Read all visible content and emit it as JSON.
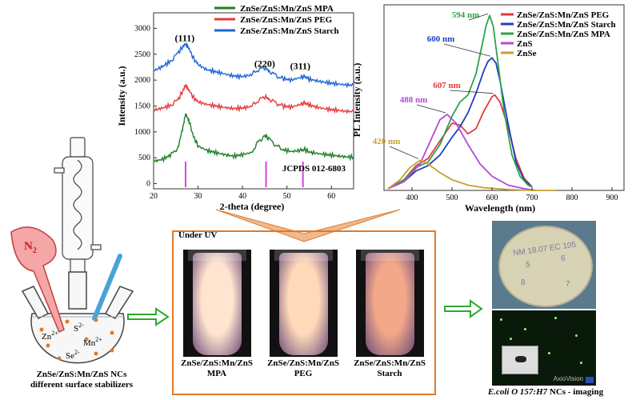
{
  "chart_data": [
    {
      "type": "line",
      "name": "XRD patterns",
      "xlabel": "2-theta (degree)",
      "ylabel": "Intensity (a.u.)",
      "xlim": [
        20,
        65
      ],
      "ylim": [
        -100,
        3300
      ],
      "xticks": [
        20,
        30,
        40,
        50,
        60
      ],
      "yticks": [
        0,
        500,
        1000,
        1500,
        2000,
        2500,
        3000
      ],
      "peak_labels": [
        {
          "text": "(111)",
          "x": 27.0,
          "y": 2750
        },
        {
          "text": "(220)",
          "x": 45.0,
          "y": 2260
        },
        {
          "text": "(311)",
          "x": 53.0,
          "y": 2210
        }
      ],
      "reference": {
        "label": "JCPDS 012-6803",
        "positions": [
          27.2,
          45.3,
          53.6
        ]
      },
      "series": [
        {
          "name": "ZnSe/ZnS:Mn/ZnS MPA",
          "color": "#1f7f27",
          "x": [
            20,
            22,
            24,
            25.5,
            26.5,
            27.2,
            28,
            29,
            30,
            32,
            34,
            36,
            38,
            40,
            42,
            43.5,
            45,
            46,
            47.5,
            49,
            51,
            53,
            54,
            55,
            57,
            59,
            61,
            63,
            65
          ],
          "values": [
            430,
            470,
            560,
            700,
            1050,
            1350,
            1200,
            900,
            730,
            640,
            600,
            560,
            530,
            560,
            600,
            800,
            930,
            860,
            740,
            660,
            620,
            640,
            660,
            610,
            580,
            560,
            540,
            520,
            510
          ]
        },
        {
          "name": "ZnSe/ZnS:Mn/ZnS PEG",
          "color": "#e33b3b",
          "x": [
            20,
            22,
            24,
            25.5,
            26.5,
            27.2,
            28,
            29,
            30,
            32,
            34,
            36,
            38,
            40,
            42,
            43.5,
            45,
            46,
            47.5,
            49,
            51,
            53,
            54,
            55,
            57,
            59,
            61,
            63,
            65
          ],
          "values": [
            1420,
            1460,
            1520,
            1620,
            1780,
            1900,
            1800,
            1660,
            1580,
            1530,
            1500,
            1470,
            1450,
            1460,
            1490,
            1600,
            1680,
            1640,
            1560,
            1500,
            1480,
            1530,
            1560,
            1520,
            1470,
            1440,
            1420,
            1400,
            1390
          ]
        },
        {
          "name": "ZnSe/ZnS:Mn/ZnS Starch",
          "color": "#1f63d6",
          "x": [
            20,
            22,
            24,
            25.5,
            26.5,
            27.2,
            28,
            29,
            30,
            32,
            34,
            36,
            38,
            40,
            42,
            43.5,
            45,
            46,
            47.5,
            49,
            51,
            53,
            54,
            55,
            57,
            59,
            61,
            63,
            65
          ],
          "values": [
            2180,
            2260,
            2380,
            2520,
            2640,
            2700,
            2600,
            2420,
            2300,
            2200,
            2160,
            2120,
            2080,
            2070,
            2100,
            2200,
            2240,
            2180,
            2090,
            2030,
            2000,
            2050,
            2070,
            2020,
            1980,
            1950,
            1930,
            1910,
            1900
          ]
        }
      ]
    },
    {
      "type": "line",
      "name": "PL spectra",
      "xlabel": "Wavelength (nm)",
      "ylabel": "PL Intensity (a.u.)",
      "xlim": [
        330,
        930
      ],
      "ylim": [
        0,
        1.05
      ],
      "xticks": [
        400,
        500,
        600,
        700,
        800,
        900
      ],
      "peak_labels": [
        {
          "text": "594 nm",
          "color": "#2ca34a",
          "x": 594
        },
        {
          "text": "600 nm",
          "color": "#1f3fbf",
          "x": 600
        },
        {
          "text": "607 nm",
          "color": "#e33b3b",
          "x": 607
        },
        {
          "text": "488 nm",
          "color": "#b44bd6",
          "x": 488
        },
        {
          "text": "420 nm",
          "color": "#c8a032",
          "x": 420
        }
      ],
      "series": [
        {
          "name": "ZnSe/ZnS:Mn/ZnS PEG",
          "color": "#e33b3b",
          "x": [
            340,
            380,
            410,
            440,
            470,
            500,
            520,
            540,
            560,
            580,
            600,
            607,
            620,
            640,
            660,
            680,
            700
          ],
          "values": [
            0.01,
            0.06,
            0.14,
            0.18,
            0.28,
            0.38,
            0.37,
            0.32,
            0.35,
            0.45,
            0.53,
            0.54,
            0.5,
            0.36,
            0.18,
            0.07,
            0.02
          ]
        },
        {
          "name": "ZnSe/ZnS:Mn/ZnS Starch",
          "color": "#1f3fbf",
          "x": [
            340,
            380,
            410,
            440,
            470,
            500,
            520,
            540,
            560,
            580,
            590,
            600,
            610,
            620,
            640,
            660,
            680,
            700
          ],
          "values": [
            0.01,
            0.05,
            0.11,
            0.14,
            0.2,
            0.3,
            0.36,
            0.44,
            0.55,
            0.68,
            0.73,
            0.75,
            0.72,
            0.62,
            0.38,
            0.16,
            0.06,
            0.02
          ]
        },
        {
          "name": "ZnSe/ZnS:Mn/ZnS MPA",
          "color": "#2ca34a",
          "x": [
            340,
            380,
            410,
            440,
            470,
            500,
            520,
            540,
            560,
            575,
            585,
            594,
            603,
            615,
            630,
            650,
            670,
            690,
            700
          ],
          "values": [
            0.01,
            0.06,
            0.13,
            0.16,
            0.26,
            0.42,
            0.5,
            0.54,
            0.66,
            0.82,
            0.93,
            0.99,
            0.93,
            0.72,
            0.45,
            0.2,
            0.08,
            0.03,
            0.02
          ]
        },
        {
          "name": "ZnS",
          "color": "#b44bd6",
          "x": [
            340,
            380,
            420,
            450,
            470,
            488,
            510,
            540,
            570,
            600,
            640,
            680,
            710
          ],
          "values": [
            0.01,
            0.05,
            0.15,
            0.3,
            0.4,
            0.43,
            0.38,
            0.26,
            0.15,
            0.08,
            0.03,
            0.01,
            0.0
          ]
        },
        {
          "name": "ZnSe",
          "color": "#c8a032",
          "x": [
            340,
            370,
            395,
            420,
            440,
            470,
            500,
            540,
            580,
            640,
            700,
            760
          ],
          "values": [
            0.01,
            0.06,
            0.13,
            0.17,
            0.15,
            0.1,
            0.06,
            0.03,
            0.015,
            0.005,
            0.0,
            0.0
          ]
        }
      ]
    }
  ],
  "scheme": {
    "gas_label": "N",
    "gas_subscript": "2",
    "ions": [
      {
        "base": "Zn",
        "sup": "2+"
      },
      {
        "base": "S",
        "sup": "2-"
      },
      {
        "base": "Mn",
        "sup": "2+"
      },
      {
        "base": "Se",
        "sup": "2-"
      }
    ],
    "caption_line1": "ZnSe/ZnS:Mn/ZnS NCs",
    "caption_line2": "different surface stabilizers"
  },
  "uv_panel": {
    "title": "Under UV",
    "vials": [
      {
        "line1": "ZnSe/ZnS:Mn/ZnS",
        "line2": "MPA",
        "glow": "#ffe4cf"
      },
      {
        "line1": "ZnSe/ZnS:Mn/ZnS",
        "line2": "PEG",
        "glow": "#ffd9b8"
      },
      {
        "line1": "ZnSe/ZnS:Mn/ZnS",
        "line2": "Starch",
        "glow": "#f2a889"
      }
    ]
  },
  "imaging": {
    "plate_marks": [
      "NM 18.07 EC 105",
      "5",
      "6",
      "8",
      "7"
    ],
    "microscope_brand": "AxioVision",
    "caption_italic": "E.coli O 157:H7",
    "caption_rest": " NCs - imaging"
  }
}
